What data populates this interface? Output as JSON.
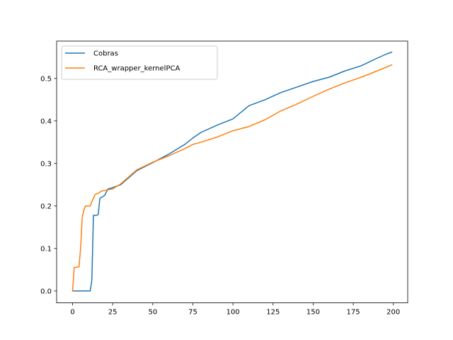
{
  "chart_data": {
    "type": "line",
    "title": "",
    "xlabel": "",
    "ylabel": "",
    "xlim": [
      -9.95,
      208.95
    ],
    "ylim": [
      -0.028,
      0.588
    ],
    "xticks": [
      0,
      25,
      50,
      75,
      100,
      125,
      150,
      175,
      200
    ],
    "yticks": [
      0.0,
      0.1,
      0.2,
      0.3,
      0.4,
      0.5
    ],
    "xtick_labels": [
      "0",
      "25",
      "50",
      "75",
      "100",
      "125",
      "150",
      "175",
      "200"
    ],
    "ytick_labels": [
      "0.0",
      "0.1",
      "0.2",
      "0.3",
      "0.4",
      "0.5"
    ],
    "grid": false,
    "legend_position": "top-left",
    "series": [
      {
        "name": "Cobras",
        "color": "#1f77b4",
        "x": [
          0,
          5,
          11,
          12,
          13,
          15,
          16,
          17,
          18,
          20,
          22,
          24,
          30,
          40,
          50,
          60,
          70,
          75,
          80,
          90,
          100,
          110,
          120,
          130,
          140,
          150,
          160,
          170,
          180,
          190,
          196,
          199
        ],
        "y": [
          0.0,
          0.0,
          0.0,
          0.025,
          0.178,
          0.178,
          0.18,
          0.218,
          0.22,
          0.225,
          0.24,
          0.242,
          0.25,
          0.283,
          0.302,
          0.322,
          0.345,
          0.36,
          0.373,
          0.39,
          0.405,
          0.436,
          0.45,
          0.467,
          0.48,
          0.493,
          0.503,
          0.518,
          0.53,
          0.548,
          0.558,
          0.562
        ]
      },
      {
        "name": "RCA_wrapper_kernelPCA",
        "color": "#ff7f0e",
        "x": [
          0,
          1,
          4,
          5,
          6,
          7,
          8,
          10,
          11,
          12,
          14,
          16,
          18,
          22,
          25,
          30,
          40,
          50,
          60,
          70,
          75,
          80,
          90,
          100,
          110,
          120,
          130,
          140,
          150,
          160,
          170,
          180,
          190,
          199
        ],
        "y": [
          0.0,
          0.055,
          0.057,
          0.1,
          0.172,
          0.19,
          0.2,
          0.2,
          0.2,
          0.21,
          0.227,
          0.23,
          0.235,
          0.238,
          0.24,
          0.252,
          0.285,
          0.303,
          0.318,
          0.335,
          0.345,
          0.35,
          0.362,
          0.377,
          0.387,
          0.403,
          0.424,
          0.44,
          0.458,
          0.475,
          0.49,
          0.503,
          0.518,
          0.532
        ]
      }
    ]
  }
}
